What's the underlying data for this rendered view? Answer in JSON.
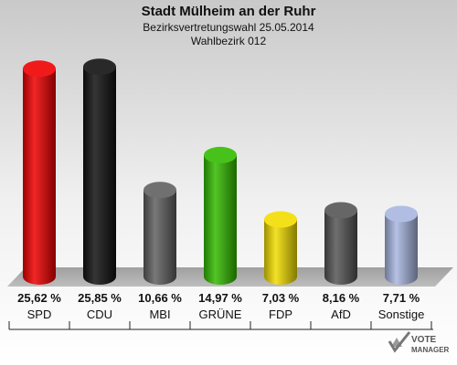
{
  "title": "Stadt Mülheim an der Ruhr",
  "subtitle": "Bezirksvertretungswahl 25.05.2014",
  "subtitle2": "Wahlbezirk 012",
  "logo": {
    "line1": "VOTE",
    "line2": "MANAGER"
  },
  "chart_data": {
    "type": "bar",
    "categories": [
      "SPD",
      "CDU",
      "MBI",
      "GRÜNE",
      "FDP",
      "AfD",
      "Sonstige"
    ],
    "values": [
      25.62,
      25.85,
      10.66,
      14.97,
      7.03,
      8.16,
      7.71
    ],
    "value_labels": [
      "25,62 %",
      "25,85 %",
      "10,66 %",
      "14,97 %",
      "7,03 %",
      "8,16 %",
      "7,71 %"
    ],
    "colors": [
      "#ee0000",
      "#111111",
      "#606060",
      "#33bb00",
      "#f2dd00",
      "#555555",
      "#a8b6e0"
    ],
    "ylim": [
      0,
      27
    ],
    "grid": false,
    "legend": "none"
  }
}
